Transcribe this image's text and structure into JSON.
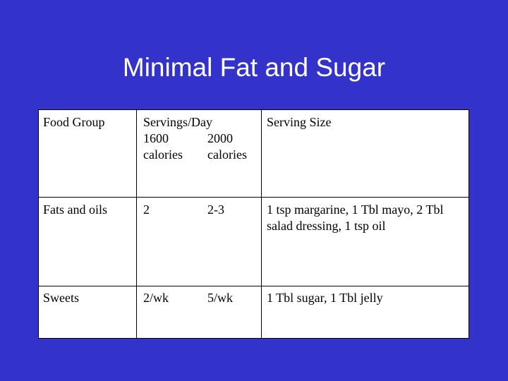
{
  "slide": {
    "title": "Minimal Fat and Sugar"
  },
  "table": {
    "header": {
      "food_group": "Food Group",
      "servings_day": "Servings/Day",
      "col_1600": "1600",
      "col_2000": "2000",
      "calories_1600": "calories",
      "calories_2000": "calories",
      "serving_size": "Serving Size"
    },
    "rows": [
      {
        "food_group": "Fats and oils",
        "servings_1600": "2",
        "servings_2000": "2-3",
        "serving_size_line1": "1 tsp margarine, 1 Tbl mayo, 2 Tbl",
        "serving_size_line2": "salad dressing, 1 tsp oil"
      },
      {
        "food_group": "Sweets",
        "servings_1600": "2/wk",
        "servings_2000": "5/wk",
        "serving_size_line1": "1 Tbl sugar, 1 Tbl jelly",
        "serving_size_line2": ""
      }
    ]
  },
  "colors": {
    "background": "#3333cc",
    "title_text": "#ffffff",
    "table_background": "#ffffff",
    "table_border": "#000000"
  }
}
